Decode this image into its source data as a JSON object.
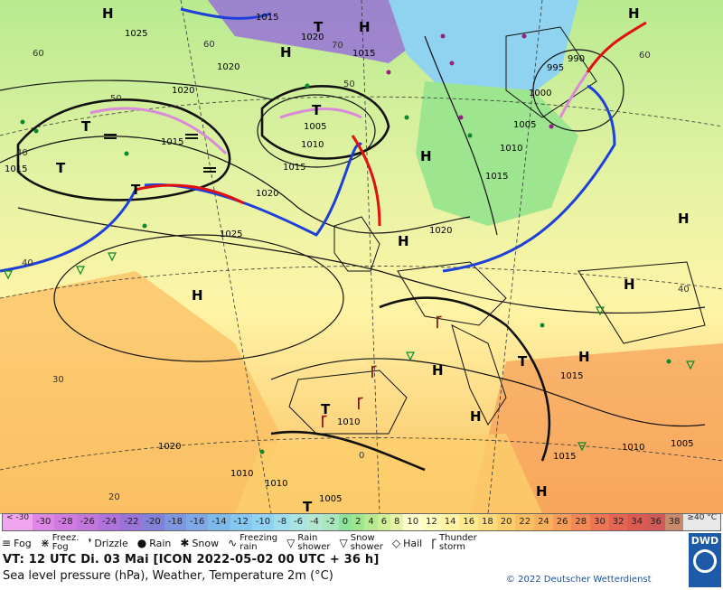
{
  "map": {
    "pressure_labels": [
      "1015",
      "1025",
      "1020",
      "1020",
      "1020",
      "1015",
      "1015",
      "1010",
      "1005",
      "1015",
      "1020",
      "1025",
      "1015",
      "990",
      "995",
      "1000",
      "1005",
      "1010",
      "1020",
      "1015",
      "1015",
      "1010",
      "1005",
      "1010",
      "1005",
      "1010",
      "1010",
      "1020",
      "1015"
    ],
    "temp_labels": [
      "60",
      "60",
      "60",
      "50",
      "40",
      "40",
      "30",
      "20",
      "0",
      "50",
      "40",
      "70"
    ],
    "pressure_centers": [
      "H",
      "H",
      "T",
      "H",
      "H",
      "T",
      "T",
      "T",
      "T",
      "H",
      "H",
      "H",
      "H",
      "H",
      "H",
      "T",
      "T",
      "H",
      "H",
      "T"
    ],
    "fronts": [
      "cold",
      "warm",
      "occluded"
    ]
  },
  "scale": {
    "values": [
      "< -30",
      "-30",
      "-28",
      "-26",
      "-24",
      "-22",
      "-20",
      "-18",
      "-16",
      "-14",
      "-12",
      "-10",
      "-8",
      "-6",
      "-4",
      "-2",
      "0",
      "2",
      "4",
      "6",
      "8",
      "10",
      "12",
      "14",
      "16",
      "18",
      "20",
      "22",
      "24",
      "26",
      "28",
      "30",
      "32",
      "34",
      "36",
      "38",
      "≥40 °C"
    ],
    "colors": [
      "#f0a6ef",
      "#dd86e6",
      "#cf7be0",
      "#c176dc",
      "#ae73da",
      "#9873d8",
      "#8181d9",
      "#7e95e0",
      "#7fa8e6",
      "#7fb9ea",
      "#86c7ef",
      "#8fd3f0",
      "#9fdded",
      "#abe3e2",
      "#b2e6d1",
      "#a8e6bd",
      "#8ee29a",
      "#9ee590",
      "#b8ea90",
      "#ceef94",
      "#e4f3a4",
      "#fffed0",
      "#fffbbd",
      "#fff4a6",
      "#fde98e",
      "#fddc7c",
      "#fcce6c",
      "#fbbf63",
      "#f9b05d",
      "#f79d58",
      "#f38a55",
      "#ed7553",
      "#e46551",
      "#db5a52",
      "#d05a57",
      "#c88a6c",
      "#e8e8e8"
    ]
  },
  "legend": {
    "items": [
      {
        "icon": "fog-icon",
        "symbol": "≡",
        "label": "Fog"
      },
      {
        "icon": "freezing-fog-icon",
        "symbol": "⋇",
        "label": "Freez.\nFog"
      },
      {
        "icon": "drizzle-icon",
        "symbol": "❜",
        "label": "Drizzle"
      },
      {
        "icon": "rain-icon",
        "symbol": "●",
        "label": "Rain"
      },
      {
        "icon": "snow-icon",
        "symbol": "✱",
        "label": "Snow"
      },
      {
        "icon": "freezing-rain-icon",
        "symbol": "∿",
        "label": "Freezing\nrain"
      },
      {
        "icon": "rain-shower-icon",
        "symbol": "▽",
        "label": "Rain\nshower"
      },
      {
        "icon": "snow-shower-icon",
        "symbol": "▽",
        "label": "Snow\nshower"
      },
      {
        "icon": "hail-icon",
        "symbol": "◇",
        "label": "Hail"
      },
      {
        "icon": "thunderstorm-icon",
        "symbol": "Ꞅ",
        "label": "Thunder\nstorm"
      }
    ]
  },
  "footer": {
    "valid_time": "VT: 12 UTC Di.  03 Mai [ICON 2022-05-02  00 UTC + 36 h]",
    "subtitle": "Sea level pressure (hPa), Weather, Temperature 2m (°C)",
    "copyright": "© 2022 Deutscher Wetterdienst",
    "logo_text": "DWD"
  }
}
